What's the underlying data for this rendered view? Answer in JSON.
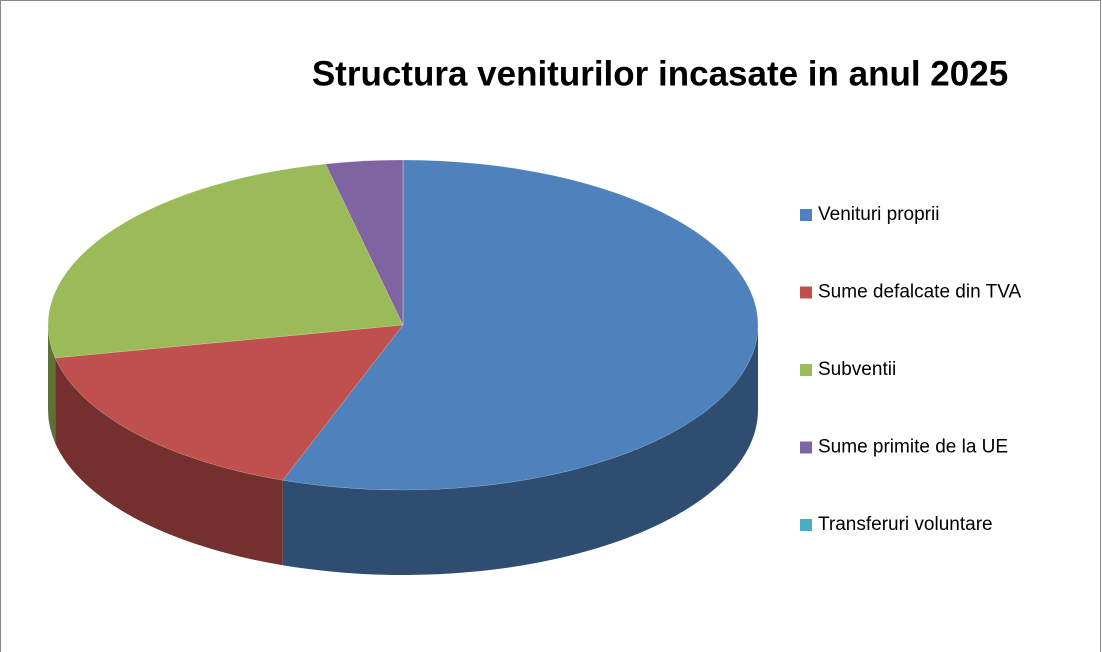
{
  "chart_data": {
    "type": "pie",
    "title": "Structura veniturilor incasate in anul 2025",
    "categories": [
      "Venituri proprii",
      "Sume defalcate din TVA",
      "Subventii",
      "Sume primite de la UE",
      "Transferuri voluntare"
    ],
    "values": [
      55.5,
      16.3,
      24.7,
      3.5,
      0
    ],
    "colors": [
      "#4f81bd",
      "#c0504d",
      "#9bbb59",
      "#8064a2",
      "#4bacc6"
    ],
    "legend": "right",
    "3d": true
  }
}
